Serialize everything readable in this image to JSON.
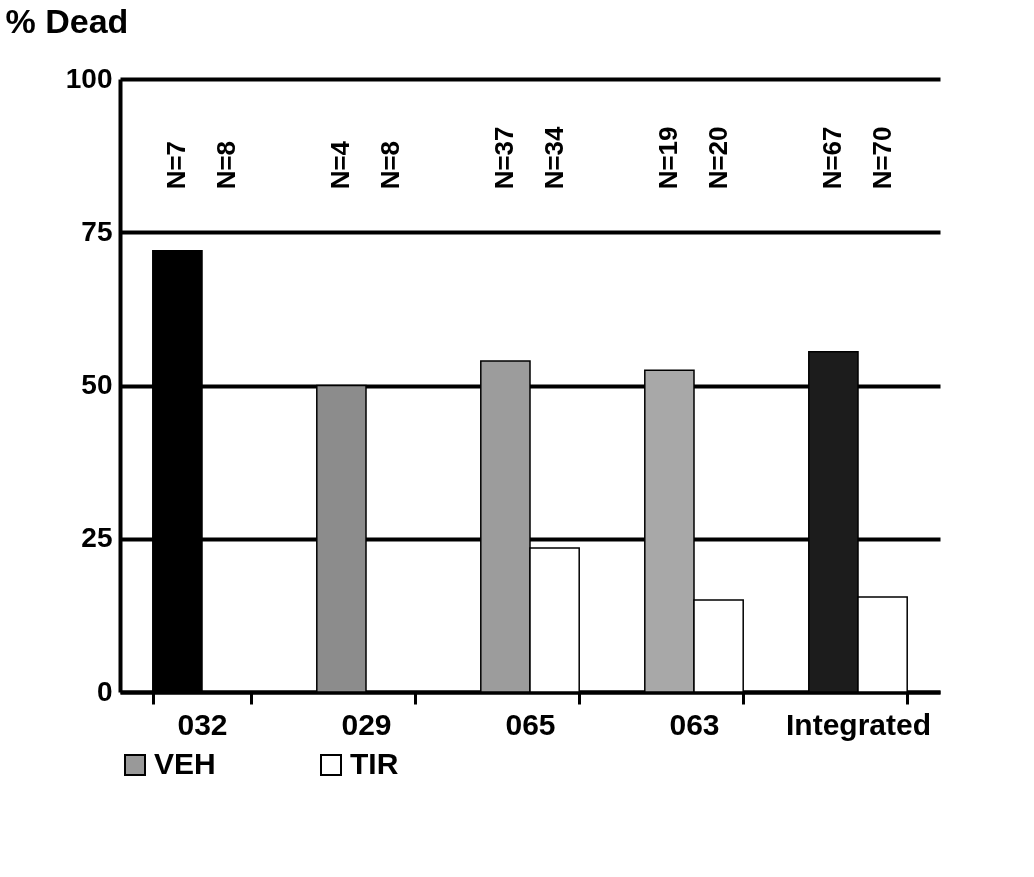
{
  "chart_data": {
    "type": "bar",
    "ylabel": "% Dead",
    "categories": [
      "032",
      "029",
      "065",
      "063",
      "Integrated"
    ],
    "series": [
      {
        "name": "VEH",
        "color": "#999999",
        "colors": [
          "#000000",
          "#8c8c8c",
          "#9c9c9c",
          "#a8a8a8",
          "#1c1c1c"
        ],
        "values": [
          72,
          50,
          54,
          52.5,
          55.5
        ]
      },
      {
        "name": "TIR",
        "color": "#ffffff",
        "values": [
          0,
          0,
          23.5,
          15,
          15.5
        ]
      }
    ],
    "annotations": [
      "N=7",
      "N=8",
      "N=4",
      "N=8",
      "N=37",
      "N=34",
      "N=19",
      "N=20",
      "N=67",
      "N=70"
    ],
    "ylim": [
      0,
      100
    ],
    "yticks": [
      0,
      25,
      50,
      75,
      100
    ],
    "grid": "y",
    "legend": "bottom"
  }
}
